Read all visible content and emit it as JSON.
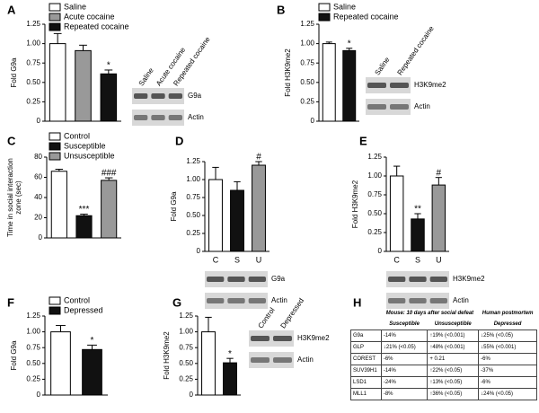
{
  "chart_data": [
    {
      "type": "bar",
      "label": "A",
      "ylabel": "Fold G9a",
      "categories": [
        "Saline",
        "Acute cocaine",
        "Repeated cocaine"
      ],
      "colors": [
        "#ffffff",
        "#999999",
        "#111111"
      ],
      "values": [
        1.0,
        0.91,
        0.61
      ],
      "errors": [
        0.13,
        0.07,
        0.05
      ],
      "annotations": [
        null,
        null,
        "*"
      ],
      "ylim": [
        0,
        1.25
      ],
      "yticks": [
        0,
        0.25,
        {
          "value": 0.5,
          "label": "0.50"
        },
        0.75,
        {
          "value": 1,
          "label": "1.00"
        },
        1.25
      ],
      "legend": true,
      "blot": {
        "lanes": [
          "Saline",
          "Acute cocaine",
          "Repeated cocaine"
        ],
        "bands": [
          "G9a",
          "Actin"
        ]
      }
    },
    {
      "type": "bar",
      "label": "B",
      "ylabel": "Fold H3K9me2",
      "categories": [
        "Saline",
        "Repeated cocaine"
      ],
      "colors": [
        "#ffffff",
        "#111111"
      ],
      "values": [
        1.0,
        0.91
      ],
      "errors": [
        0.02,
        0.03
      ],
      "annotations": [
        null,
        "*"
      ],
      "ylim": [
        0,
        1.25
      ],
      "yticks": [
        0,
        0.25,
        {
          "value": 0.5,
          "label": "0.50"
        },
        0.75,
        {
          "value": 1,
          "label": "1.00"
        },
        1.25
      ],
      "legend": true,
      "blot": {
        "lanes": [
          "Saline",
          "Repeated cocaine"
        ],
        "bands": [
          "H3K9me2",
          "Actin"
        ]
      }
    },
    {
      "type": "bar",
      "label": "C",
      "ylabel": [
        "Time in social interaction",
        "zone (sec)"
      ],
      "categories": [
        "Control",
        "Susceptible",
        "Unsusceptible"
      ],
      "colors": [
        "#ffffff",
        "#111111",
        "#999999"
      ],
      "values": [
        66,
        22,
        57
      ],
      "errors": [
        2,
        1.5,
        2.5
      ],
      "annotations": [
        null,
        "***",
        "###"
      ],
      "ylim": [
        0,
        80
      ],
      "yticks": [
        0,
        20,
        40,
        60,
        80
      ],
      "legend": true
    },
    {
      "type": "bar",
      "label": "D",
      "ylabel": "Fold G9a",
      "categories": [
        "C",
        "S",
        "U"
      ],
      "colors": [
        "#ffffff",
        "#111111",
        "#999999"
      ],
      "values": [
        1.0,
        0.85,
        1.2
      ],
      "errors": [
        0.17,
        0.12,
        0.05
      ],
      "annotations": [
        null,
        null,
        "#"
      ],
      "ylim": [
        0,
        1.25
      ],
      "yticks": [
        0,
        0.25,
        {
          "value": 0.5,
          "label": "0.50"
        },
        0.75,
        {
          "value": 1,
          "label": "1.00"
        },
        1.25
      ],
      "legend": false,
      "blot": {
        "bands": [
          "G9a",
          "Actin"
        ]
      }
    },
    {
      "type": "bar",
      "label": "E",
      "ylabel": "Fold H3K9me2",
      "categories": [
        "C",
        "S",
        "U"
      ],
      "colors": [
        "#ffffff",
        "#111111",
        "#999999"
      ],
      "values": [
        1.0,
        0.43,
        0.88
      ],
      "errors": [
        0.13,
        0.07,
        0.1
      ],
      "annotations": [
        null,
        "**",
        "#"
      ],
      "ylim": [
        0,
        1.25
      ],
      "yticks": [
        0,
        0.25,
        {
          "value": 0.5,
          "label": "0.50"
        },
        0.75,
        {
          "value": 1,
          "label": "1.00"
        },
        1.25
      ],
      "legend": false,
      "blot": {
        "bands": [
          "H3K9me2",
          "Actin"
        ]
      }
    },
    {
      "type": "bar",
      "label": "F",
      "ylabel": "Fold G9a",
      "categories": [
        "Control",
        "Depressed"
      ],
      "colors": [
        "#ffffff",
        "#111111"
      ],
      "values": [
        1.0,
        0.72
      ],
      "errors": [
        0.1,
        0.07
      ],
      "annotations": [
        null,
        "*"
      ],
      "ylim": [
        0,
        1.25
      ],
      "yticks": [
        0,
        0.25,
        {
          "value": 0.5,
          "label": "0.50"
        },
        0.75,
        {
          "value": 1,
          "label": "1.00"
        },
        1.25
      ],
      "legend": true
    },
    {
      "type": "bar",
      "label": "G",
      "ylabel": "Fold H3K9me2",
      "categories": [
        null,
        null
      ],
      "colors": [
        "#ffffff",
        "#111111"
      ],
      "values": [
        1.0,
        0.51
      ],
      "errors": [
        0.23,
        0.07
      ],
      "annotations": [
        null,
        "*"
      ],
      "ylim": [
        0,
        1.25
      ],
      "yticks": [
        0,
        0.25,
        {
          "value": 0.5,
          "label": "0.50"
        },
        0.75,
        {
          "value": 1,
          "label": "1.00"
        },
        1.25
      ],
      "legend": false,
      "blot": {
        "lanes": [
          "Control",
          "Depressed"
        ],
        "bands": [
          "H3K9me2",
          "Actin"
        ]
      }
    }
  ],
  "table": {
    "label": "H",
    "header": [
      "Mouse: 10 days after social defeat",
      "Human postmortem"
    ],
    "subheader": [
      "Susceptible",
      "Unsusceptible",
      "Depressed"
    ],
    "rows": [
      [
        "G9a",
        "-14%",
        "↑19% (<0.001)",
        "↓25% (<0.05)"
      ],
      [
        "GLP",
        "↓21% (<0.05)",
        "↑48% (<0.001)",
        "↓55% (<0.001)"
      ],
      [
        "COREST",
        "-6%",
        "+ 0.21",
        "-6%"
      ],
      [
        "SUV39H1",
        "-14%",
        "↑22% (<0.05)",
        "-37%"
      ],
      [
        "LSD1",
        "-24%",
        "↑13% (<0.05)",
        "-6%"
      ],
      [
        "MLL1",
        "-8%",
        "↑36% (<0.05)",
        "↓24% (<0.05)"
      ]
    ]
  }
}
